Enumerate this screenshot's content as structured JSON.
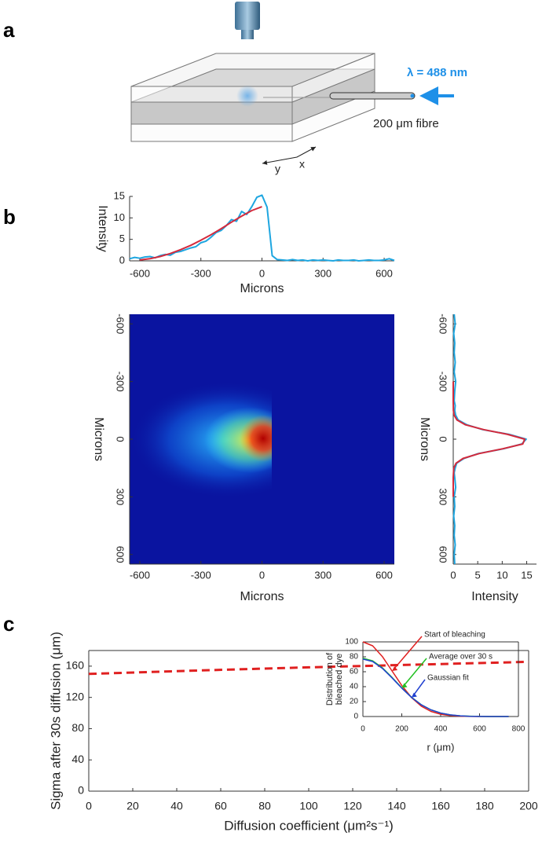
{
  "panel_labels": [
    "a",
    "b",
    "c"
  ],
  "diagram": {
    "wavelength": "λ = 488 nm",
    "fibre": "200 μm fibre",
    "axis_y": "y",
    "axis_x": "x"
  },
  "chart_data": [
    {
      "type": "line",
      "xlabel": "Microns",
      "ylabel": "Intensity",
      "xlim": [
        -650,
        650
      ],
      "xticks": [
        -600,
        -300,
        0,
        300,
        600
      ],
      "ylim": [
        0,
        15
      ],
      "yticks": [
        0,
        5,
        10,
        15
      ],
      "series": [
        {
          "color": "#1ea6e0",
          "x": [
            -650,
            -625,
            -600,
            -575,
            -550,
            -525,
            -500,
            -475,
            -450,
            -425,
            -400,
            -375,
            -350,
            -325,
            -300,
            -275,
            -250,
            -225,
            -200,
            -175,
            -150,
            -125,
            -100,
            -75,
            -50,
            -25,
            0,
            25,
            50,
            75,
            100,
            125,
            150,
            175,
            200,
            225,
            250,
            275,
            300,
            325,
            350,
            375,
            400,
            425,
            450,
            475,
            500,
            525,
            550,
            575,
            600,
            625,
            650
          ],
          "values": [
            0.5,
            0.8,
            0.6,
            0.9,
            1.0,
            0.7,
            1.2,
            1.5,
            1.3,
            2.0,
            2.2,
            2.6,
            3.0,
            3.3,
            4.2,
            4.6,
            5.5,
            6.6,
            7.1,
            8.2,
            9.6,
            9.2,
            11.5,
            10.8,
            12.6,
            14.8,
            15.3,
            12.5,
            1.2,
            0.3,
            0.2,
            0.1,
            0.3,
            0.1,
            0.2,
            0.0,
            0.2,
            0.1,
            0.2,
            0.1,
            0.0,
            0.2,
            0.1,
            0.1,
            0.2,
            0.0,
            0.1,
            0.2,
            0.1,
            0.1,
            0.2,
            0.5,
            0.1
          ]
        },
        {
          "color": "#d42a3c",
          "x": [
            -600,
            -550,
            -500,
            -450,
            -400,
            -350,
            -300,
            -250,
            -200,
            -150,
            -100,
            -50,
            0
          ],
          "values": [
            0.2,
            0.5,
            1.0,
            1.7,
            2.6,
            3.6,
            4.8,
            6.1,
            7.5,
            9.0,
            10.4,
            11.7,
            12.6
          ]
        }
      ]
    },
    {
      "type": "heatmap",
      "xlabel": "Microns",
      "ylabel": "Microns",
      "xlim": [
        -650,
        650
      ],
      "xticks": [
        -600,
        -300,
        0,
        300,
        600
      ],
      "ylim": [
        -650,
        650
      ],
      "yticks": [
        -600,
        -300,
        0,
        300,
        600
      ],
      "y_inverted": true
    },
    {
      "type": "line",
      "orientation": "horizontal",
      "xlabel": "Intensity",
      "ylabel": "Microns",
      "xlim": [
        0,
        17
      ],
      "xticks": [
        0,
        5,
        10,
        15
      ],
      "ylim": [
        -650,
        650
      ],
      "yticks": [
        -600,
        -300,
        0,
        300,
        600
      ],
      "y_inverted": true,
      "series": [
        {
          "color": "#1ea6e0",
          "x": [
            -650,
            -600,
            -550,
            -500,
            -450,
            -400,
            -350,
            -300,
            -250,
            -200,
            -175,
            -150,
            -125,
            -100,
            -75,
            -50,
            -25,
            0,
            25,
            50,
            75,
            100,
            125,
            150,
            175,
            200,
            250,
            300,
            350,
            400,
            450,
            500,
            550,
            600,
            650
          ],
          "values": [
            0.2,
            0.4,
            0.1,
            0.3,
            0.2,
            0.4,
            0.2,
            0.5,
            0.3,
            0.2,
            0.4,
            0.3,
            0.5,
            1.0,
            2.8,
            6.0,
            11.4,
            14.9,
            14.0,
            10.3,
            5.1,
            2.2,
            0.7,
            0.4,
            0.2,
            0.3,
            0.5,
            0.2,
            0.3,
            0.1,
            0.3,
            0.2,
            0.4,
            0.2,
            0.3
          ]
        },
        {
          "color": "#d42a3c",
          "x": [
            -300,
            -250,
            -200,
            -150,
            -125,
            -100,
            -75,
            -50,
            -25,
            0,
            25,
            50,
            75,
            100,
            125,
            150,
            200,
            250,
            300
          ],
          "values": [
            0,
            0,
            0,
            0.03,
            0.17,
            0.75,
            2.5,
            6.2,
            11.1,
            14.6,
            14.2,
            10.1,
            5.3,
            2.0,
            0.57,
            0.12,
            0,
            0,
            0
          ]
        }
      ]
    },
    {
      "type": "line",
      "xlabel": "Diffusion coefficient (μm²s⁻¹)",
      "ylabel": "Sigma after 30s diffusion (μm)",
      "xlim": [
        0,
        200
      ],
      "xticks": [
        0,
        20,
        40,
        60,
        80,
        100,
        120,
        140,
        160,
        180,
        200
      ],
      "ylim": [
        0,
        180
      ],
      "yticks": [
        0,
        40,
        80,
        120,
        160
      ],
      "box": true,
      "series": [
        {
          "color": "#e02020",
          "dashed": true,
          "x": [
            0,
            50,
            100,
            150,
            200
          ],
          "values": [
            150,
            154.5,
            158.5,
            162,
            165.5
          ]
        }
      ]
    },
    {
      "type": "line",
      "xlabel": "r (μm)",
      "ylabel": [
        "Distribution of",
        "bleached dye"
      ],
      "xlim": [
        0,
        800
      ],
      "xticks": [
        0,
        200,
        400,
        600,
        800
      ],
      "ylim": [
        0,
        100
      ],
      "yticks": [
        0,
        20,
        40,
        60,
        80,
        100
      ],
      "box": true,
      "series": [
        {
          "color": "#e02020",
          "x": [
            0,
            50,
            100,
            150,
            200,
            250,
            300,
            350,
            400,
            450,
            500,
            550,
            600,
            650,
            700,
            750
          ],
          "values": [
            100,
            94.7,
            80.3,
            61.1,
            41.6,
            25.4,
            13.9,
            6.8,
            3.0,
            1.2,
            0.4,
            0.1,
            0,
            0,
            0,
            0
          ]
        },
        {
          "color": "#22c022",
          "x": [
            0,
            50,
            100,
            150,
            200,
            250,
            300,
            350,
            400,
            450,
            500,
            550,
            600,
            650,
            700,
            750
          ],
          "values": [
            78,
            74.6,
            65.3,
            52.4,
            38.4,
            25.8,
            15.8,
            8.9,
            4.6,
            2.1,
            0.9,
            0.4,
            0.1,
            0,
            0,
            0
          ]
        },
        {
          "color": "#2040d0",
          "x": [
            0,
            50,
            100,
            150,
            200,
            250,
            300,
            350,
            400,
            450,
            500,
            550,
            600,
            650,
            700,
            750
          ],
          "values": [
            77,
            73.7,
            64.5,
            51.8,
            38.0,
            25.6,
            15.7,
            8.9,
            4.6,
            2.2,
            0.9,
            0.3,
            0.1,
            0,
            0,
            0
          ]
        }
      ],
      "annotations": [
        {
          "text": "Start of bleaching",
          "color": "#e02020"
        },
        {
          "text": "Average over 30 s",
          "color": "#22c022"
        },
        {
          "text": "Gaussian fit",
          "color": "#2040d0"
        }
      ]
    }
  ]
}
